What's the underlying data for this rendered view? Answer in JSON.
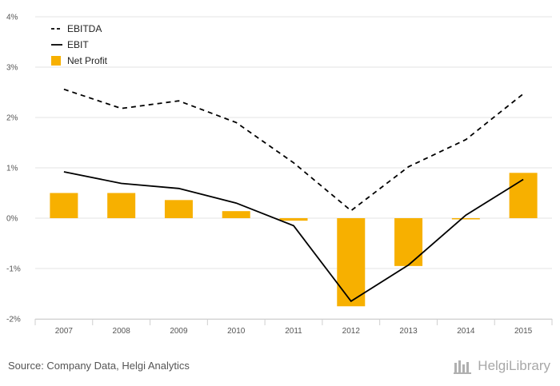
{
  "chart_data": {
    "type": "bar",
    "categories": [
      "2007",
      "2008",
      "2009",
      "2010",
      "2011",
      "2012",
      "2013",
      "2014",
      "2015"
    ],
    "series": [
      {
        "name": "EBITDA",
        "type": "line",
        "style": "dashed",
        "color": "#000000",
        "values": [
          2.56,
          2.18,
          2.33,
          1.9,
          1.1,
          0.15,
          1.02,
          1.56,
          2.47
        ]
      },
      {
        "name": "EBIT",
        "type": "line",
        "style": "solid",
        "color": "#000000",
        "values": [
          0.92,
          0.69,
          0.59,
          0.3,
          -0.15,
          -1.65,
          -0.93,
          0.06,
          0.77
        ]
      },
      {
        "name": "Net Profit",
        "type": "bar",
        "color": "#f7b000",
        "values": [
          0.5,
          0.5,
          0.36,
          0.14,
          -0.05,
          -1.75,
          -0.95,
          -0.02,
          0.9
        ]
      }
    ],
    "ylim": [
      -2,
      4
    ],
    "yticks": [
      "-2%",
      "-1%",
      "0%",
      "1%",
      "2%",
      "3%",
      "4%"
    ],
    "ytick_values": [
      -2,
      -1,
      0,
      1,
      2,
      3,
      4
    ],
    "grid": true,
    "legend_position": "top-left"
  },
  "footer": {
    "source": "Source: Company Data, Helgi Analytics",
    "logo_text": "HelgiLibrary"
  }
}
